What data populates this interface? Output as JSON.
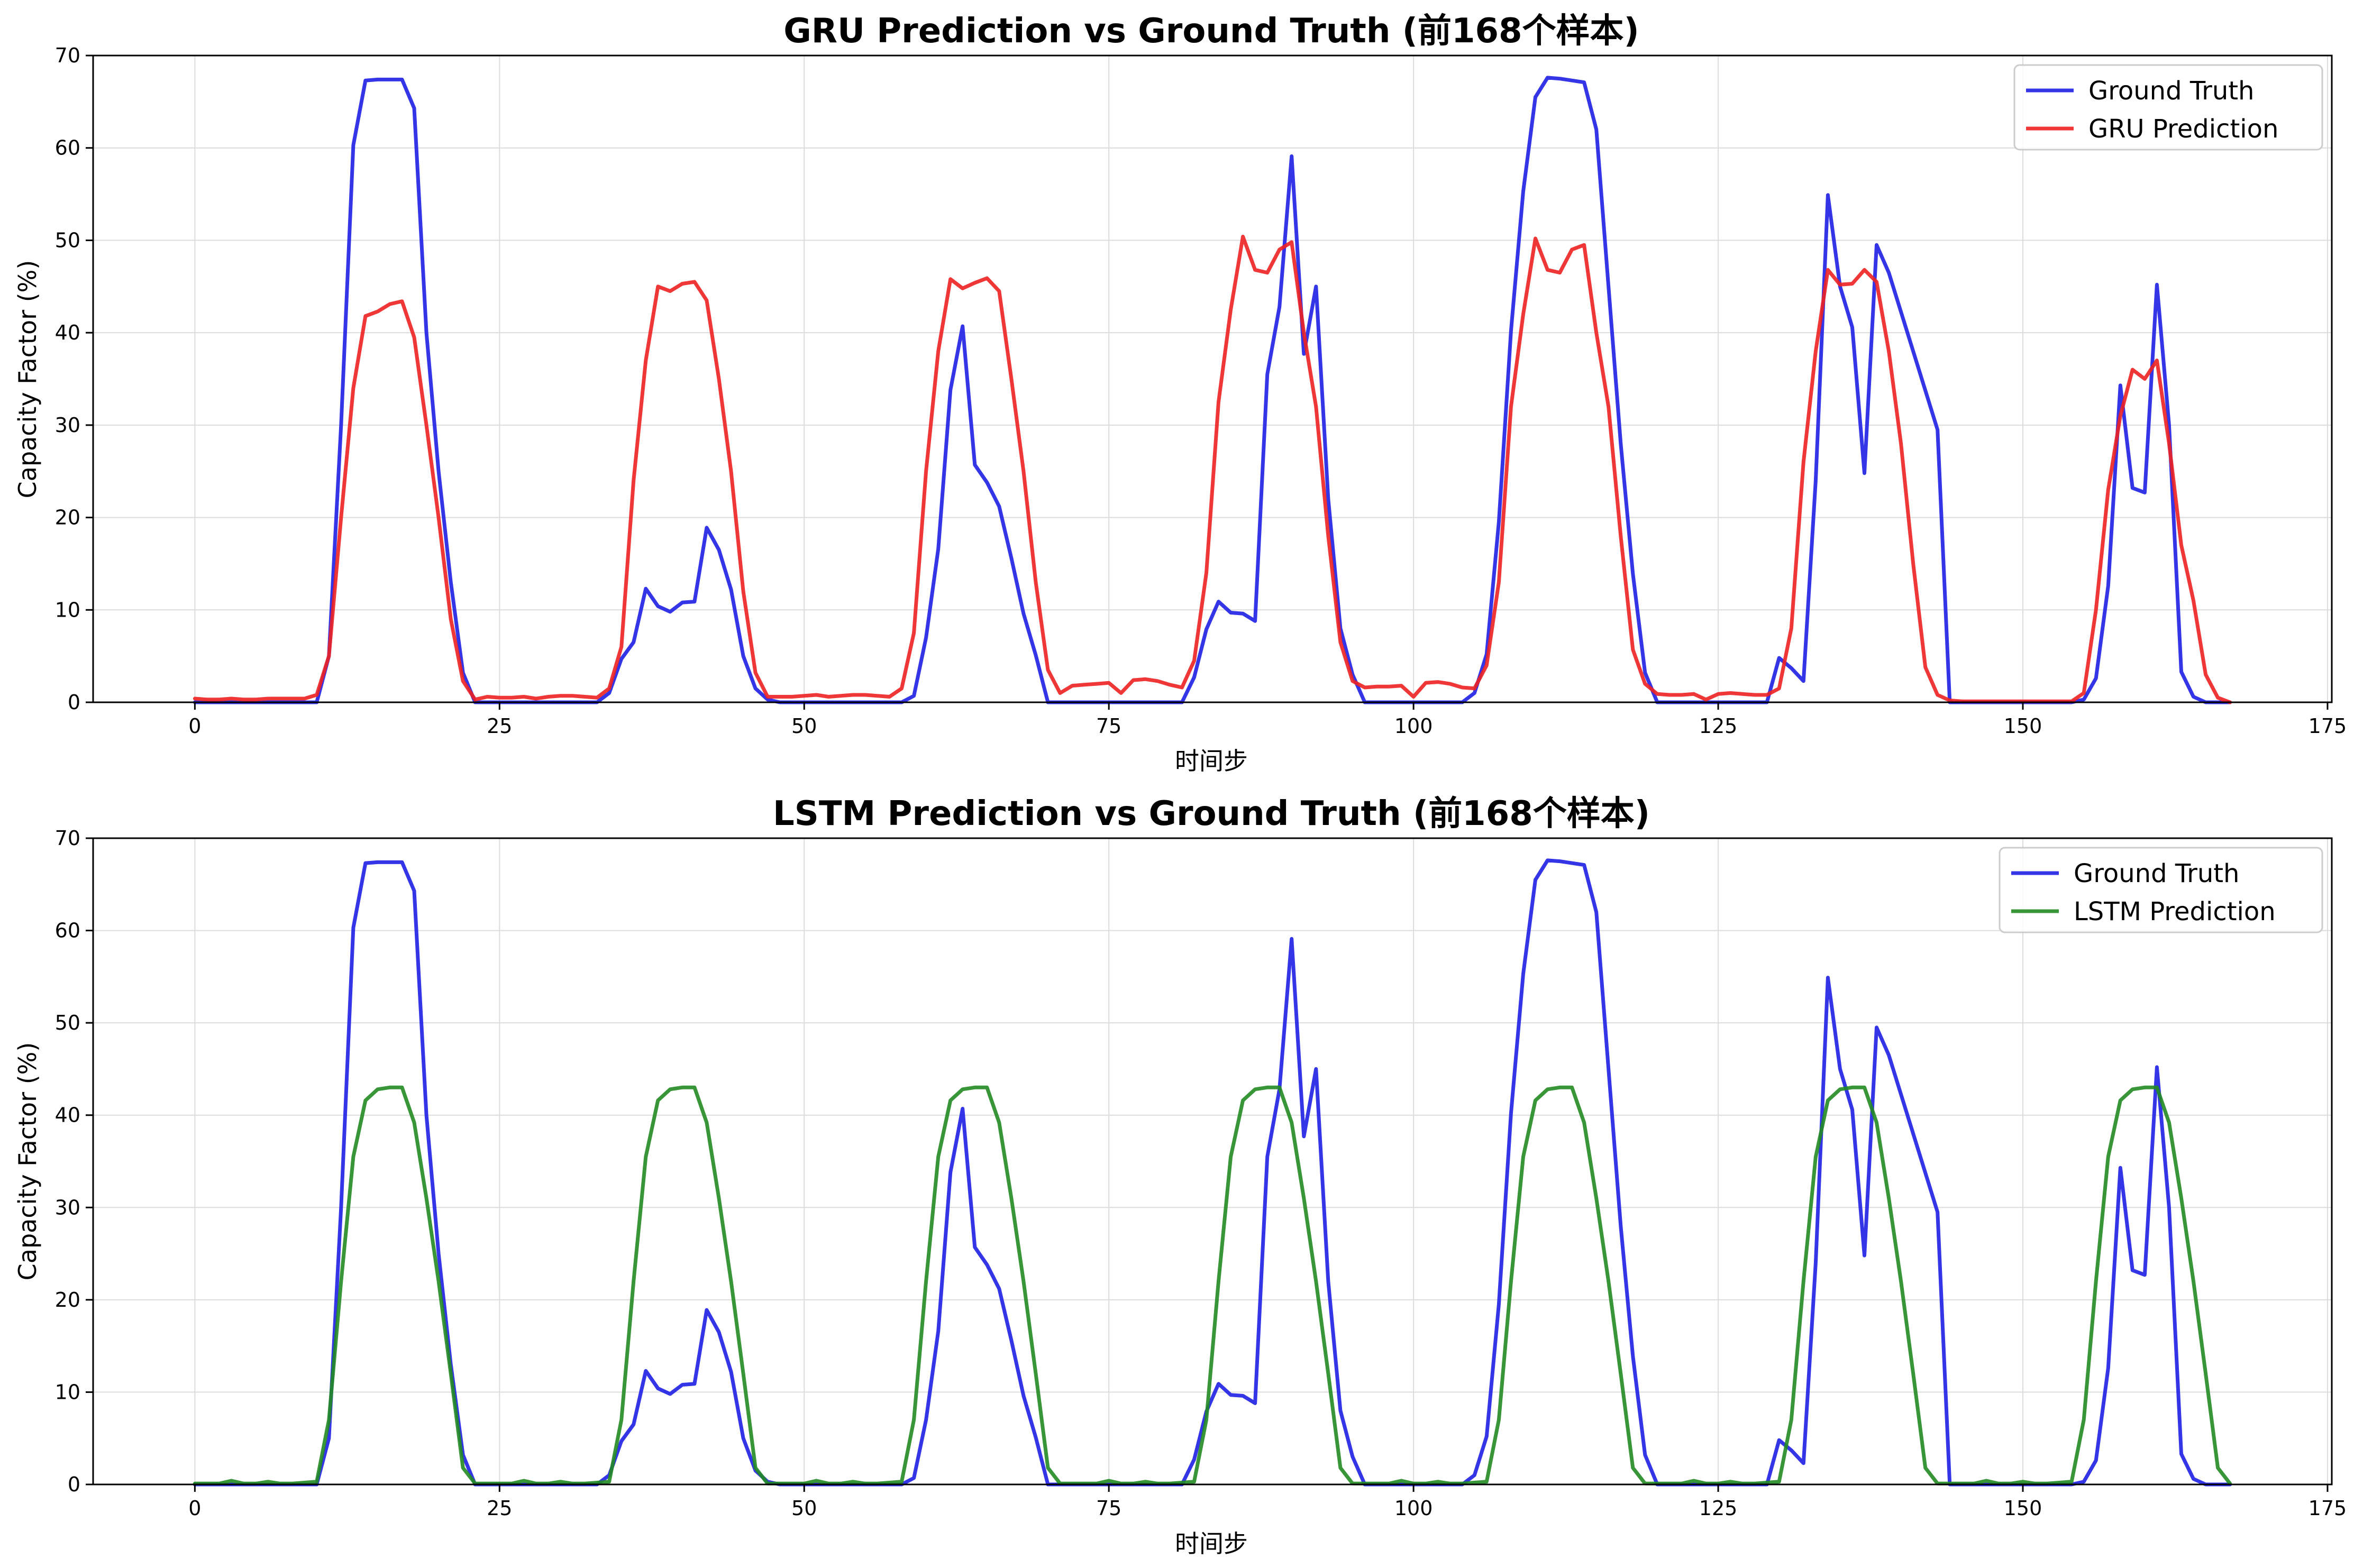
{
  "chart_data": [
    {
      "type": "line",
      "title": "GRU Prediction vs Ground Truth (前168个样本)",
      "xlabel": "时间步",
      "ylabel": "Capacity Factor (%)",
      "xlim": [
        -8.35,
        175.35
      ],
      "ylim": [
        0,
        70
      ],
      "xticks": [
        0,
        25,
        50,
        75,
        100,
        125,
        150,
        175
      ],
      "yticks": [
        0,
        10,
        20,
        30,
        40,
        50,
        60,
        70
      ],
      "grid": true,
      "legend": "upper right",
      "series": [
        {
          "name": "Ground Truth",
          "color": "#1f1fe6",
          "x": [
            0,
            10,
            11,
            12,
            13,
            14,
            15,
            16,
            17,
            18,
            19,
            20,
            21,
            22,
            23,
            33,
            34,
            35,
            36,
            37,
            38,
            39,
            40,
            41,
            42,
            43,
            44,
            45,
            46,
            47,
            48,
            58,
            59,
            60,
            61,
            62,
            63,
            64,
            65,
            66,
            67,
            68,
            69,
            70,
            71,
            81,
            82,
            83,
            84,
            85,
            86,
            87,
            88,
            89,
            90,
            91,
            92,
            93,
            94,
            95,
            96,
            104,
            105,
            106,
            107,
            108,
            109,
            110,
            111,
            112,
            113,
            114,
            115,
            116,
            117,
            118,
            119,
            120,
            129,
            130,
            131,
            132,
            133,
            134,
            135,
            136,
            137,
            138,
            139,
            143,
            144,
            154,
            155,
            156,
            157,
            158,
            159,
            160,
            161,
            162,
            163,
            164,
            165,
            167
          ],
          "y": [
            0,
            0,
            5,
            30,
            60.3,
            67.3,
            67.4,
            67.4,
            67.4,
            64.3,
            40,
            25,
            13,
            3.2,
            0,
            0,
            1,
            4.7,
            6.5,
            12.3,
            10.4,
            9.8,
            10.8,
            10.9,
            18.9,
            16.5,
            12.2,
            5,
            1.5,
            0.3,
            0,
            0,
            0.7,
            7,
            16.6,
            33.8,
            40.7,
            25.7,
            23.8,
            21.2,
            15.6,
            9.6,
            5.1,
            0,
            0,
            0,
            2.7,
            7.9,
            10.9,
            9.7,
            9.6,
            8.8,
            35.5,
            42.8,
            59.1,
            37.7,
            45,
            22,
            8,
            3,
            0,
            0,
            1,
            5.2,
            19.5,
            40.2,
            55.3,
            65.5,
            67.6,
            67.5,
            67.3,
            67.1,
            62,
            45,
            28,
            13.9,
            3.2,
            0,
            0,
            4.8,
            3.7,
            2.3,
            24,
            54.9,
            45,
            40.6,
            24.8,
            49.5,
            46.5,
            29.5,
            0,
            0,
            0.3,
            2.6,
            12.6,
            34.3,
            23.2,
            22.7,
            45.2,
            30,
            3.3,
            0.6,
            0,
            0
          ]
        },
        {
          "name": "GRU Prediction",
          "color": "#ee2121",
          "x": [
            0,
            1,
            2,
            3,
            4,
            5,
            6,
            7,
            8,
            9,
            10,
            11,
            12,
            13,
            14,
            15,
            16,
            17,
            18,
            19,
            20,
            21,
            22,
            23,
            24,
            25,
            26,
            27,
            28,
            29,
            30,
            31,
            32,
            33,
            34,
            35,
            36,
            37,
            38,
            39,
            40,
            41,
            42,
            43,
            44,
            45,
            46,
            47,
            48,
            49,
            50,
            51,
            52,
            53,
            54,
            55,
            56,
            57,
            58,
            59,
            60,
            61,
            62,
            63,
            64,
            65,
            66,
            67,
            68,
            69,
            70,
            71,
            72,
            73,
            74,
            75,
            76,
            77,
            78,
            79,
            80,
            81,
            82,
            83,
            84,
            85,
            86,
            87,
            88,
            89,
            90,
            91,
            92,
            93,
            94,
            95,
            96,
            97,
            98,
            99,
            100,
            101,
            102,
            103,
            104,
            105,
            106,
            107,
            108,
            109,
            110,
            111,
            112,
            113,
            114,
            115,
            116,
            117,
            118,
            119,
            120,
            121,
            122,
            123,
            124,
            125,
            126,
            127,
            128,
            129,
            130,
            131,
            132,
            133,
            134,
            135,
            136,
            137,
            138,
            139,
            140,
            141,
            142,
            143,
            144,
            145,
            146,
            147,
            148,
            149,
            150,
            151,
            152,
            153,
            154,
            155,
            156,
            157,
            158,
            159,
            160,
            161,
            162,
            163,
            164,
            165,
            166,
            167
          ],
          "y": [
            0.4,
            0.3,
            0.3,
            0.4,
            0.3,
            0.3,
            0.4,
            0.4,
            0.4,
            0.4,
            0.8,
            5,
            20,
            34,
            41.8,
            42.3,
            43.1,
            43.4,
            39.5,
            30,
            20,
            9,
            2.3,
            0.3,
            0.6,
            0.5,
            0.5,
            0.6,
            0.4,
            0.6,
            0.7,
            0.7,
            0.6,
            0.5,
            1.5,
            6,
            24,
            37,
            45,
            44.5,
            45.3,
            45.5,
            43.5,
            35,
            25,
            12,
            3.2,
            0.6,
            0.6,
            0.6,
            0.7,
            0.8,
            0.6,
            0.7,
            0.8,
            0.8,
            0.7,
            0.6,
            1.5,
            7.5,
            25,
            38,
            45.8,
            44.8,
            45.4,
            45.9,
            44.5,
            35,
            25,
            13,
            3.5,
            1,
            1.8,
            1.9,
            2,
            2.1,
            1,
            2.4,
            2.5,
            2.3,
            1.9,
            1.6,
            4.5,
            14,
            32.5,
            42.5,
            50.4,
            46.8,
            46.5,
            49,
            49.8,
            40,
            32,
            18,
            6.5,
            2.3,
            1.6,
            1.7,
            1.7,
            1.8,
            0.6,
            2.1,
            2.2,
            2,
            1.6,
            1.5,
            4,
            13,
            32,
            42,
            50.2,
            46.8,
            46.5,
            49,
            49.5,
            40,
            32,
            18,
            5.7,
            2,
            0.9,
            0.8,
            0.8,
            0.9,
            0.3,
            0.9,
            1,
            0.9,
            0.8,
            0.8,
            1.5,
            8,
            26,
            38,
            46.8,
            45.2,
            45.3,
            46.8,
            45.5,
            38,
            28,
            15,
            3.8,
            0.8,
            0.2,
            0.1,
            0.1,
            0.1,
            0.1,
            0.1,
            0.1,
            0.1,
            0.1,
            0.1,
            0.1,
            1,
            10,
            23,
            31,
            36,
            35,
            37,
            28,
            17,
            11,
            3,
            0.5,
            0
          ]
        }
      ]
    },
    {
      "type": "line",
      "title": "LSTM Prediction vs Ground Truth (前168个样本)",
      "xlabel": "时间步",
      "ylabel": "Capacity Factor (%)",
      "xlim": [
        -8.35,
        175.35
      ],
      "ylim": [
        0,
        70
      ],
      "xticks": [
        0,
        25,
        50,
        75,
        100,
        125,
        150,
        175
      ],
      "yticks": [
        0,
        10,
        20,
        30,
        40,
        50,
        60,
        70
      ],
      "grid": true,
      "legend": "upper right",
      "series": [
        {
          "name": "Ground Truth",
          "color": "#1f1fe6",
          "x": [
            0,
            10,
            11,
            12,
            13,
            14,
            15,
            16,
            17,
            18,
            19,
            20,
            21,
            22,
            23,
            33,
            34,
            35,
            36,
            37,
            38,
            39,
            40,
            41,
            42,
            43,
            44,
            45,
            46,
            47,
            48,
            58,
            59,
            60,
            61,
            62,
            63,
            64,
            65,
            66,
            67,
            68,
            69,
            70,
            71,
            81,
            82,
            83,
            84,
            85,
            86,
            87,
            88,
            89,
            90,
            91,
            92,
            93,
            94,
            95,
            96,
            104,
            105,
            106,
            107,
            108,
            109,
            110,
            111,
            112,
            113,
            114,
            115,
            116,
            117,
            118,
            119,
            120,
            129,
            130,
            131,
            132,
            133,
            134,
            135,
            136,
            137,
            138,
            139,
            143,
            144,
            154,
            155,
            156,
            157,
            158,
            159,
            160,
            161,
            162,
            163,
            164,
            165,
            167
          ],
          "y": [
            0,
            0,
            5,
            30,
            60.3,
            67.3,
            67.4,
            67.4,
            67.4,
            64.3,
            40,
            25,
            13,
            3.2,
            0,
            0,
            1,
            4.7,
            6.5,
            12.3,
            10.4,
            9.8,
            10.8,
            10.9,
            18.9,
            16.5,
            12.2,
            5,
            1.5,
            0.3,
            0,
            0,
            0.7,
            7,
            16.6,
            33.8,
            40.7,
            25.7,
            23.8,
            21.2,
            15.6,
            9.6,
            5.1,
            0,
            0,
            0,
            2.7,
            7.9,
            10.9,
            9.7,
            9.6,
            8.8,
            35.5,
            42.8,
            59.1,
            37.7,
            45,
            22,
            8,
            3,
            0,
            0,
            1,
            5.2,
            19.5,
            40.2,
            55.3,
            65.5,
            67.6,
            67.5,
            67.3,
            67.1,
            62,
            45,
            28,
            13.9,
            3.2,
            0,
            0,
            4.8,
            3.7,
            2.3,
            24,
            54.9,
            45,
            40.6,
            24.8,
            49.5,
            46.5,
            29.5,
            0,
            0,
            0.3,
            2.6,
            12.6,
            34.3,
            23.2,
            22.7,
            45.2,
            30,
            3.3,
            0.6,
            0,
            0
          ]
        },
        {
          "name": "LSTM Prediction",
          "color": "#228b22",
          "x": [
            0,
            1,
            2,
            3,
            4,
            5,
            6,
            7,
            8,
            9,
            10,
            11,
            12,
            13,
            14,
            15,
            16,
            17,
            18,
            19,
            20,
            21,
            22,
            23,
            24,
            25,
            26,
            27,
            28,
            29,
            30,
            31,
            32,
            33,
            34,
            35,
            36,
            37,
            38,
            39,
            40,
            41,
            42,
            43,
            44,
            45,
            46,
            47,
            48,
            49,
            50,
            51,
            52,
            53,
            54,
            55,
            56,
            57,
            58,
            59,
            60,
            61,
            62,
            63,
            64,
            65,
            66,
            67,
            68,
            69,
            70,
            71,
            72,
            73,
            74,
            75,
            76,
            77,
            78,
            79,
            80,
            81,
            82,
            83,
            84,
            85,
            86,
            87,
            88,
            89,
            90,
            91,
            92,
            93,
            94,
            95,
            96,
            97,
            98,
            99,
            100,
            101,
            102,
            103,
            104,
            105,
            106,
            107,
            108,
            109,
            110,
            111,
            112,
            113,
            114,
            115,
            116,
            117,
            118,
            119,
            120,
            121,
            122,
            123,
            124,
            125,
            126,
            127,
            128,
            129,
            130,
            131,
            132,
            133,
            134,
            135,
            136,
            137,
            138,
            139,
            140,
            141,
            142,
            143,
            144,
            145,
            146,
            147,
            148,
            149,
            150,
            151,
            152,
            153,
            154,
            155,
            156,
            157,
            158,
            159,
            160,
            161,
            162,
            163,
            164,
            165,
            166,
            167
          ],
          "y": [
            0.1,
            0.1,
            0.1,
            0.4,
            0.1,
            0.1,
            0.3,
            0.1,
            0.1,
            0.2,
            0.3,
            7,
            22,
            35.5,
            41.6,
            42.8,
            43,
            43,
            39.2,
            31,
            22,
            12,
            1.8,
            0.1,
            0.1,
            0.1,
            0.1,
            0.4,
            0.1,
            0.1,
            0.3,
            0.1,
            0.1,
            0.2,
            0.3,
            7,
            22,
            35.5,
            41.6,
            42.8,
            43,
            43,
            39.2,
            31,
            22,
            12,
            1.8,
            0.1,
            0.1,
            0.1,
            0.1,
            0.4,
            0.1,
            0.1,
            0.3,
            0.1,
            0.1,
            0.2,
            0.3,
            7,
            22,
            35.5,
            41.6,
            42.8,
            43,
            43,
            39.2,
            31,
            22,
            12,
            1.8,
            0.1,
            0.1,
            0.1,
            0.1,
            0.4,
            0.1,
            0.1,
            0.3,
            0.1,
            0.1,
            0.2,
            0.3,
            7,
            22,
            35.5,
            41.6,
            42.8,
            43,
            43,
            39.2,
            31,
            22,
            12,
            1.8,
            0.1,
            0.1,
            0.1,
            0.1,
            0.4,
            0.1,
            0.1,
            0.3,
            0.1,
            0.1,
            0.2,
            0.3,
            7,
            22,
            35.5,
            41.6,
            42.8,
            43,
            43,
            39.2,
            31,
            22,
            12,
            1.8,
            0.1,
            0.1,
            0.1,
            0.1,
            0.4,
            0.1,
            0.1,
            0.3,
            0.1,
            0.1,
            0.2,
            0.3,
            7,
            22,
            35.5,
            41.6,
            42.8,
            43,
            43,
            39.2,
            31,
            22,
            12,
            1.8,
            0.1,
            0.1,
            0.1,
            0.1,
            0.4,
            0.1,
            0.1,
            0.3,
            0.1,
            0.1,
            0.2,
            0.3,
            7,
            22,
            35.5,
            41.6,
            42.8,
            43,
            43,
            39.2,
            31,
            22,
            12,
            1.8,
            0.1
          ]
        }
      ]
    }
  ]
}
